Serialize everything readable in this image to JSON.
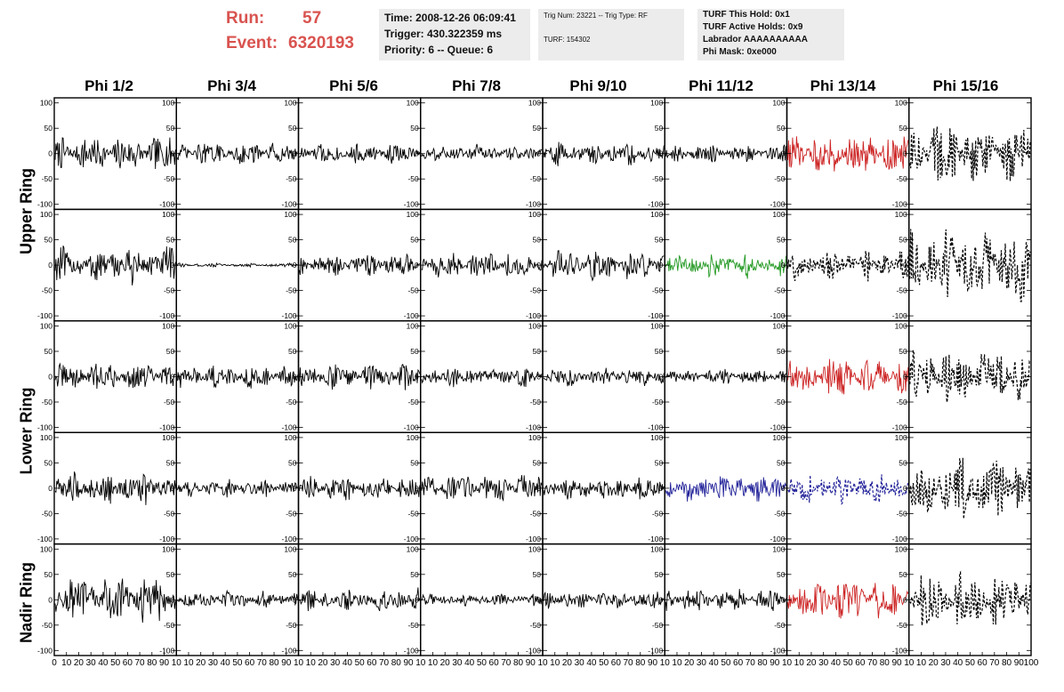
{
  "header": {
    "run_label": "Run:",
    "run_value": "57",
    "event_label": "Event:",
    "event_value": "6320193",
    "time_box": {
      "time": "Time: 2008-12-26 06:09:41",
      "trigger": "Trigger: 430.322359 ms",
      "priority": "Priority: 6 -- Queue: 6"
    },
    "trig_box": {
      "trig": "Trig Num: 23221 -- Trig Type: RF",
      "turf": "TURF: 154302"
    },
    "turf_box": {
      "hold": "TURF This Hold: 0x1",
      "active": "TURF Active Holds: 0x9",
      "labrador": "Labrador AAAAAAAAAA",
      "phimask": "Phi Mask: 0xe000"
    }
  },
  "columns": [
    "Phi 1/2",
    "Phi 3/4",
    "Phi 5/6",
    "Phi 7/8",
    "Phi 9/10",
    "Phi 11/12",
    "Phi 13/14",
    "Phi 15/16"
  ],
  "rings": {
    "upper": "Upper Ring",
    "lower": "Lower Ring",
    "nadir": "Nadir Ring"
  },
  "colors": {
    "header_red": "#d9534f",
    "trace_black": "#000000",
    "trace_red": "#cc2222",
    "trace_green": "#229922",
    "trace_blue": "#22229a"
  },
  "chart_data": {
    "type": "line",
    "grid": false,
    "xlim": [
      0,
      100
    ],
    "ylim": [
      -110,
      110
    ],
    "y_ticks": [
      "100",
      "50",
      "0",
      "-50",
      "-100"
    ],
    "x_ticks": [
      "0",
      "10",
      "20",
      "30",
      "40",
      "50",
      "60",
      "70",
      "80",
      "90",
      "100"
    ],
    "x_tick_row": [
      "0 10 20 30 40 50 60 70 80 90 10",
      "10 20 30 40 50 60 70 80 90 10",
      "10 20 30 40 50 60 70 80 90 10",
      "10 20 30 40 50 60 70 80 90 10",
      "10 20 30 40 50 60 70 80 90 10",
      "10 20 30 40 50 60 70 80 90 10",
      "10 20 30 40 50 60 70 80 90 10",
      "10 20 30 40 50 60 70 80 90 100"
    ],
    "panels": [
      [
        {
          "amp": 28,
          "color": "black",
          "style": "solid"
        },
        {
          "amp": 18,
          "color": "black",
          "style": "solid"
        },
        {
          "amp": 16,
          "color": "black",
          "style": "solid"
        },
        {
          "amp": 14,
          "color": "black",
          "style": "solid"
        },
        {
          "amp": 18,
          "color": "black",
          "style": "solid"
        },
        {
          "amp": 14,
          "color": "black",
          "style": "solid"
        },
        {
          "amp": 32,
          "color": "red",
          "style": "solid"
        },
        {
          "amp": 50,
          "color": "black",
          "style": "dashed"
        }
      ],
      [
        {
          "amp": 30,
          "color": "black",
          "style": "solid"
        },
        {
          "amp": 3,
          "color": "black",
          "style": "solid"
        },
        {
          "amp": 18,
          "color": "black",
          "style": "solid"
        },
        {
          "amp": 22,
          "color": "black",
          "style": "solid"
        },
        {
          "amp": 24,
          "color": "black",
          "style": "solid"
        },
        {
          "amp": 20,
          "color": "green",
          "style": "solid"
        },
        {
          "amp": 24,
          "color": "black",
          "style": "dashed"
        },
        {
          "amp": 62,
          "color": "black",
          "style": "dashed"
        }
      ],
      [
        {
          "amp": 22,
          "color": "black",
          "style": "solid"
        },
        {
          "amp": 18,
          "color": "black",
          "style": "solid"
        },
        {
          "amp": 20,
          "color": "black",
          "style": "solid"
        },
        {
          "amp": 16,
          "color": "black",
          "style": "solid"
        },
        {
          "amp": 16,
          "color": "black",
          "style": "solid"
        },
        {
          "amp": 12,
          "color": "black",
          "style": "solid"
        },
        {
          "amp": 32,
          "color": "red",
          "style": "solid"
        },
        {
          "amp": 42,
          "color": "black",
          "style": "dashed"
        }
      ],
      [
        {
          "amp": 24,
          "color": "black",
          "style": "solid"
        },
        {
          "amp": 14,
          "color": "black",
          "style": "solid"
        },
        {
          "amp": 20,
          "color": "black",
          "style": "solid"
        },
        {
          "amp": 22,
          "color": "black",
          "style": "solid"
        },
        {
          "amp": 18,
          "color": "black",
          "style": "solid"
        },
        {
          "amp": 22,
          "color": "blue",
          "style": "solid"
        },
        {
          "amp": 24,
          "color": "blue",
          "style": "dashed"
        },
        {
          "amp": 48,
          "color": "black",
          "style": "dashed"
        }
      ],
      [
        {
          "amp": 40,
          "color": "black",
          "style": "solid"
        },
        {
          "amp": 14,
          "color": "black",
          "style": "solid"
        },
        {
          "amp": 18,
          "color": "black",
          "style": "solid"
        },
        {
          "amp": 10,
          "color": "black",
          "style": "solid"
        },
        {
          "amp": 14,
          "color": "black",
          "style": "solid"
        },
        {
          "amp": 18,
          "color": "black",
          "style": "solid"
        },
        {
          "amp": 32,
          "color": "red",
          "style": "solid"
        },
        {
          "amp": 46,
          "color": "black",
          "style": "dashed"
        }
      ]
    ]
  }
}
